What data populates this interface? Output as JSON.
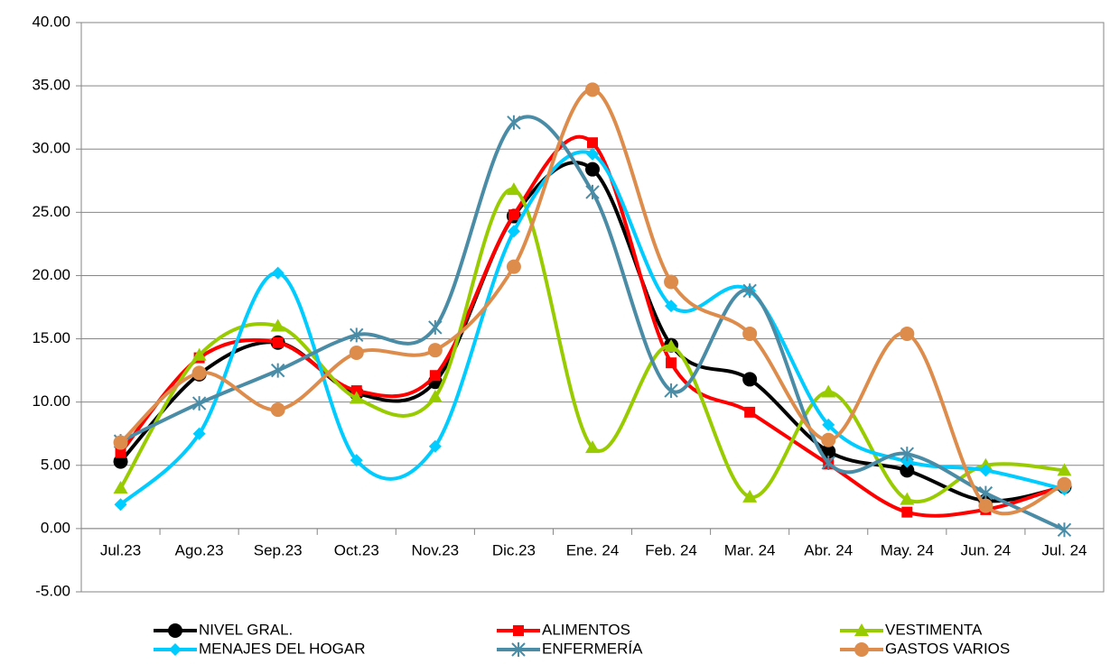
{
  "chart_data": {
    "type": "line",
    "smooth": true,
    "categories": [
      "Jul.23",
      "Ago.23",
      "Sep.23",
      "Oct.23",
      "Nov.23",
      "Dic.23",
      "Ene. 24",
      "Feb. 24",
      "Mar. 24",
      "Abr. 24",
      "May. 24",
      "Jun. 24",
      "Jul. 24"
    ],
    "ylim": [
      -5,
      40
    ],
    "yticks": [
      {
        "value": -5,
        "label": "-5.00"
      },
      {
        "value": 0,
        "label": "0.00"
      },
      {
        "value": 5,
        "label": "5.00"
      },
      {
        "value": 10,
        "label": "10.00"
      },
      {
        "value": 15,
        "label": "15.00"
      },
      {
        "value": 20,
        "label": "20.00"
      },
      {
        "value": 25,
        "label": "25.00"
      },
      {
        "value": 30,
        "label": "30.00"
      },
      {
        "value": 35,
        "label": "35.00"
      },
      {
        "value": 40,
        "label": "40.00"
      }
    ],
    "grid": true,
    "legend": "bottom",
    "series": [
      {
        "name": "NIVEL GRAL.",
        "color": "#000000",
        "marker": "circle",
        "values": [
          5.3,
          12.2,
          14.7,
          10.7,
          11.6,
          24.7,
          28.4,
          14.5,
          11.8,
          6.1,
          4.6,
          2.2,
          3.3
        ]
      },
      {
        "name": "ALIMENTOS",
        "color": "#ff0000",
        "marker": "square",
        "values": [
          6.0,
          13.5,
          14.7,
          10.9,
          12.1,
          24.8,
          30.5,
          13.1,
          9.2,
          5.1,
          1.3,
          1.5,
          3.4
        ]
      },
      {
        "name": "VESTIMENTA",
        "color": "#99cc00",
        "marker": "triangle",
        "values": [
          3.2,
          13.7,
          16.0,
          10.3,
          10.4,
          26.8,
          6.4,
          14.4,
          2.5,
          10.8,
          2.3,
          5.0,
          4.6
        ]
      },
      {
        "name": "MENAJES DEL HOGAR",
        "color": "#00ccff",
        "marker": "diamond",
        "values": [
          1.9,
          7.5,
          20.2,
          5.4,
          6.5,
          23.5,
          29.6,
          17.6,
          18.8,
          8.2,
          5.3,
          4.6,
          3.1
        ]
      },
      {
        "name": "ENFERMERÍA",
        "color": "#4a8ca6",
        "marker": "star",
        "values": [
          6.9,
          9.9,
          12.5,
          15.3,
          15.9,
          32.1,
          26.6,
          10.9,
          18.8,
          5.2,
          5.9,
          2.8,
          -0.1
        ]
      },
      {
        "name": "GASTOS VARIOS",
        "color": "#dd8c4c",
        "marker": "circle",
        "values": [
          6.8,
          12.3,
          9.4,
          13.9,
          14.1,
          20.7,
          34.7,
          19.5,
          15.4,
          7.0,
          15.4,
          1.8,
          3.5
        ]
      }
    ]
  }
}
